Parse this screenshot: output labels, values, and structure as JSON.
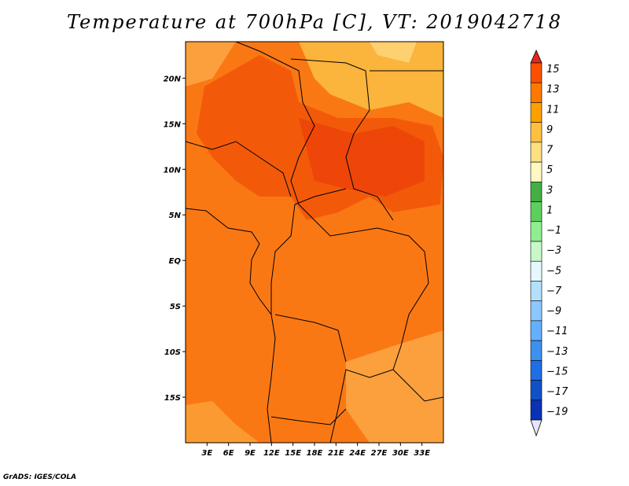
{
  "chart_data": {
    "type": "heatmap",
    "title": "Temperature at 700hPa [C], VT: 2019042718",
    "variable": "Temperature at 700hPa",
    "units": "C",
    "valid_time": "2019042718",
    "x_axis": {
      "range_deg": [
        0,
        36
      ],
      "ticks": [
        "3E",
        "6E",
        "9E",
        "12E",
        "15E",
        "18E",
        "21E",
        "24E",
        "27E",
        "30E",
        "33E"
      ]
    },
    "y_axis": {
      "range_deg": [
        -20,
        24
      ],
      "ticks": [
        "20N",
        "15N",
        "10N",
        "5N",
        "EQ",
        "5S",
        "10S",
        "15S"
      ]
    },
    "colorbar": {
      "labels": [
        "15",
        "13",
        "11",
        "9",
        "7",
        "5",
        "3",
        "1",
        "−1",
        "−3",
        "−5",
        "−7",
        "−9",
        "−11",
        "−13",
        "−15",
        "−17",
        "−19"
      ],
      "levels": [
        15,
        13,
        11,
        9,
        7,
        5,
        3,
        1,
        -1,
        -3,
        -5,
        -7,
        -9,
        -11,
        -13,
        -15,
        -17,
        -19
      ],
      "colors": [
        "#f02800",
        "#fa5000",
        "#ff7800",
        "#ffa000",
        "#ffc040",
        "#ffe080",
        "#fff8c0",
        "#44b044",
        "#5cd05c",
        "#90ee90",
        "#c8f8c8",
        "#e6f8ff",
        "#b4e0ff",
        "#8cc8ff",
        "#64b0ff",
        "#3c90ee",
        "#1e6ee6",
        "#1250c8",
        "#0a32b4",
        "#00147d"
      ],
      "top_color": "#e0281e",
      "bottom_color": "#e6e6ff"
    },
    "regions": [
      {
        "name": "hot-core-north",
        "level_c": 13
      },
      {
        "name": "warm-north-edge",
        "level_c": 9
      },
      {
        "name": "warm-south-east",
        "level_c": 9
      },
      {
        "name": "base",
        "level_c": 11
      }
    ]
  },
  "footer": {
    "credit": "GrADS: IGES/COLA"
  }
}
